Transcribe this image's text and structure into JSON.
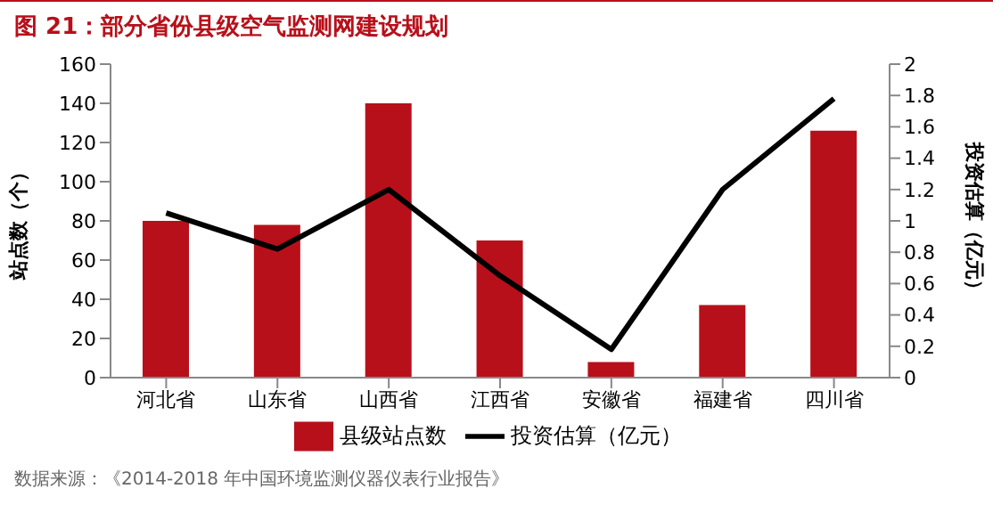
{
  "chart_data": {
    "type": "bar",
    "title": "图 21：部分省份县级空气监测网建设规划",
    "ylabel": "站点数（个）",
    "y2label": "投资估算（亿元）",
    "categories": [
      "河北省",
      "山东省",
      "山西省",
      "江西省",
      "安徽省",
      "福建省",
      "四川省"
    ],
    "series": [
      {
        "name": "县级站点数",
        "color": "#b8101a",
        "values": [
          80,
          78,
          140,
          70,
          8,
          37,
          126
        ]
      },
      {
        "name": "投资估算（亿元）",
        "type": "line",
        "axis": "y2",
        "color": "#000000",
        "values": [
          1.05,
          0.82,
          1.2,
          0.65,
          0.18,
          1.2,
          1.78
        ]
      }
    ],
    "ylim": [
      0,
      160
    ],
    "yticks": [
      0,
      20,
      40,
      60,
      80,
      100,
      120,
      140,
      160
    ],
    "y2lim": [
      0,
      2
    ],
    "y2ticks": [
      0,
      0.2,
      0.4,
      0.6,
      0.8,
      1,
      1.2,
      1.4,
      1.6,
      1.8,
      2
    ],
    "grid": false,
    "legend": "bottom",
    "marker": "none",
    "line_style": "solid",
    "annotations": [
      "数据来源：《2014-2018 年中国环境监测仪器仪表行业报告》"
    ]
  }
}
